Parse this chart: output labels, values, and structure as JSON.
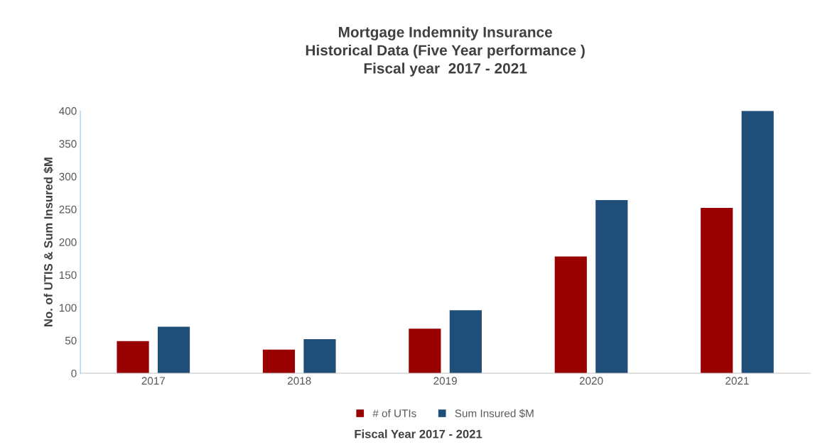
{
  "chart_data": {
    "type": "bar",
    "title": "Mortgage Indemnity Insurance\nHistorical Data (Five Year performance )\nFiscal year  2017 - 2021",
    "xlabel": "Fiscal Year 2017 - 2021",
    "ylabel": "No. of UTIS & Sum Insured $M",
    "categories": [
      "2017",
      "2018",
      "2019",
      "2020",
      "2021"
    ],
    "series": [
      {
        "name": "# of UTIs",
        "color": "#990000",
        "values": [
          49,
          36,
          68,
          178,
          252
        ]
      },
      {
        "name": "Sum Insured $M",
        "color": "#1f4e79",
        "values": [
          71,
          52,
          96,
          264,
          400
        ]
      }
    ],
    "ylim": [
      0,
      400
    ],
    "yticks": [
      0,
      50,
      100,
      150,
      200,
      250,
      300,
      350,
      400
    ],
    "grid": false,
    "legend": "bottom"
  }
}
